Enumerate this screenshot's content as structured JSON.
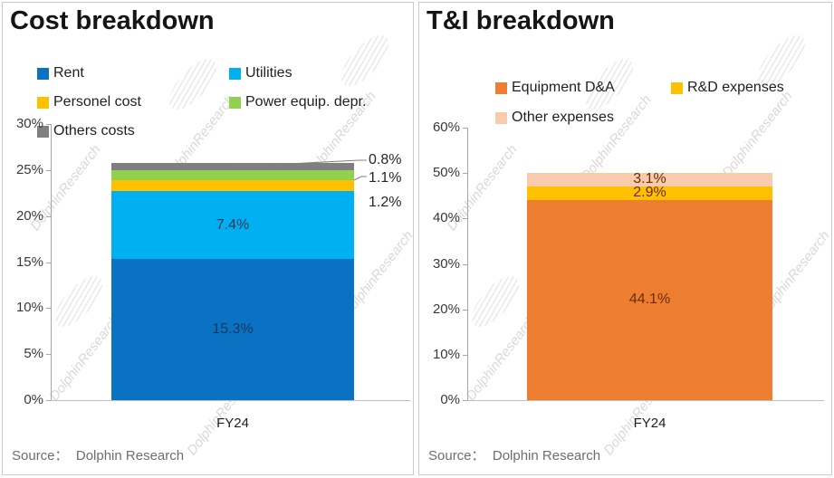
{
  "watermark": {
    "text": "DolphinResearch"
  },
  "chart_data": [
    {
      "type": "bar",
      "subtype": "stacked-column",
      "title": "Cost breakdown",
      "categories": [
        "FY24"
      ],
      "series": [
        {
          "name": "Rent",
          "values": [
            15.3
          ],
          "label": "15.3%",
          "color": "#0A72C2",
          "label_color": "#17365D",
          "label_pos": "inside"
        },
        {
          "name": "Utilities",
          "values": [
            7.4
          ],
          "label": "7.4%",
          "color": "#00B0F0",
          "label_color": "#17365D",
          "label_pos": "inside"
        },
        {
          "name": "Personel cost",
          "values": [
            1.2
          ],
          "label": "1.2%",
          "color": "#FFC000",
          "label_color": "#262626",
          "label_pos": "outside"
        },
        {
          "name": "Power equip. depr.",
          "values": [
            1.1
          ],
          "label": "1.1%",
          "color": "#92D050",
          "label_color": "#262626",
          "label_pos": "outside"
        },
        {
          "name": "Others costs",
          "values": [
            0.8
          ],
          "label": "0.8%",
          "color": "#7F7F7F",
          "label_color": "#262626",
          "label_pos": "outside"
        }
      ],
      "y_axis": {
        "min": 0,
        "max": 30,
        "step": 5,
        "tick_labels": [
          "0%",
          "5%",
          "10%",
          "15%",
          "20%",
          "25%",
          "30%"
        ]
      },
      "x_tick": "FY24",
      "grid": "off",
      "legend_position": "top",
      "source": "Source：  Dolphin Research"
    },
    {
      "type": "bar",
      "subtype": "stacked-column",
      "title": "T&I breakdown",
      "categories": [
        "FY24"
      ],
      "series": [
        {
          "name": "Equipment D&A",
          "values": [
            44.1
          ],
          "label": "44.1%",
          "color": "#ED7D31",
          "label_color": "#6B2E09",
          "label_pos": "inside"
        },
        {
          "name": "R&D expenses",
          "values": [
            2.9
          ],
          "label": "2.9%",
          "color": "#FFC000",
          "label_color": "#6B2E09",
          "label_pos": "inside"
        },
        {
          "name": "Other expenses",
          "values": [
            3.1
          ],
          "label": "3.1%",
          "color": "#F8CBAD",
          "label_color": "#6B2E09",
          "label_pos": "inside"
        }
      ],
      "y_axis": {
        "min": 0,
        "max": 60,
        "step": 10,
        "tick_labels": [
          "0%",
          "10%",
          "20%",
          "30%",
          "40%",
          "50%",
          "60%"
        ]
      },
      "x_tick": "FY24",
      "grid": "off",
      "legend_position": "top",
      "source": "Source：  Dolphin Research"
    }
  ]
}
